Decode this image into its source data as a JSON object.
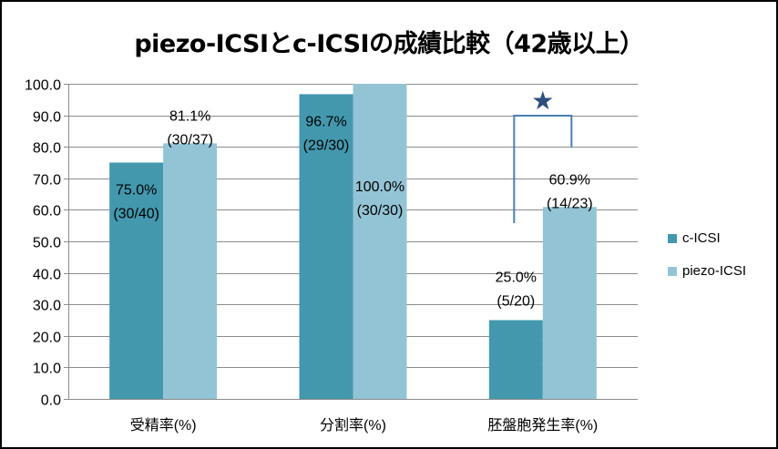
{
  "title": "piezo-ICSIとc-ICSIの成績比較（42歳以上）",
  "colors": {
    "c_icsi": "#4398AE",
    "piezo_icsi": "#93C4D5",
    "bracket": "#4A7FB5",
    "star": "#2D4F7C",
    "grid": "#8C8C8C",
    "axis": "#8C8C8C"
  },
  "legend": {
    "position": "right",
    "items": [
      {
        "label": "c-ICSI",
        "color": "#4398AE"
      },
      {
        "label": "piezo-ICSI",
        "color": "#93C4D5"
      }
    ]
  },
  "chart_data": {
    "type": "bar",
    "categories": [
      "受精率(%)",
      "分割率(%)",
      "胚盤胞発生率(%)"
    ],
    "series": [
      {
        "name": "c-ICSI",
        "values": [
          75.0,
          96.7,
          25.0
        ],
        "labels": [
          [
            "75.0%",
            "(30/40)"
          ],
          [
            "96.7%",
            "(29/30)"
          ],
          [
            "25.0%",
            "(5/20)"
          ]
        ]
      },
      {
        "name": "piezo-ICSI",
        "values": [
          81.1,
          100.0,
          60.9
        ],
        "labels": [
          [
            "81.1%",
            "(30/37)"
          ],
          [
            "100.0%",
            "(30/30)"
          ],
          [
            "60.9%",
            "(14/23)"
          ]
        ]
      }
    ],
    "ylim": [
      0,
      100
    ],
    "ytick_step": 10,
    "ytick_labels": [
      "0.0",
      "10.0",
      "20.0",
      "30.0",
      "40.0",
      "50.0",
      "60.0",
      "70.0",
      "80.0",
      "90.0",
      "100.0"
    ],
    "grid": true,
    "xlabel": "",
    "ylabel": "",
    "annotations": [
      {
        "text": "★",
        "category": "胚盤胞発生率(%)",
        "meaning": "significant difference"
      }
    ]
  }
}
